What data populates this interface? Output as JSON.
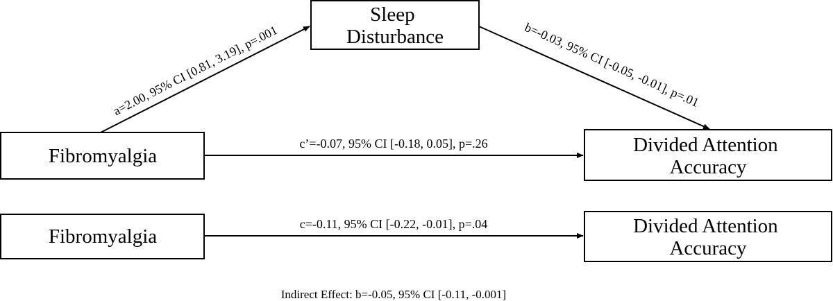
{
  "nodes": {
    "mediator": {
      "lines": [
        "Sleep",
        "Disturbance"
      ]
    },
    "predictor_top": {
      "lines": [
        "Fibromyalgia"
      ]
    },
    "outcome_top": {
      "lines": [
        "Divided Attention",
        "Accuracy"
      ]
    },
    "predictor_bottom": {
      "lines": [
        "Fibromyalgia"
      ]
    },
    "outcome_bottom": {
      "lines": [
        "Divided Attention",
        "Accuracy"
      ]
    }
  },
  "paths": {
    "a": "a=2.00, 95% CI [0.81, 3.19], p=.001",
    "b": "b=-0.03, 95% CI [-0.05, -0.01], p=.01",
    "c_prime": "c’=-0.07, 95% CI [-0.18, 0.05], p=.26",
    "c": "c=-0.11, 95% CI [-0.22, -0.01], p=.04"
  },
  "footer": {
    "indirect_effect": "Indirect Effect: b=-0.05, 95% CI [-0.11, -0.001]"
  },
  "colors": {
    "line": "#000000",
    "background": "#ffffff"
  }
}
